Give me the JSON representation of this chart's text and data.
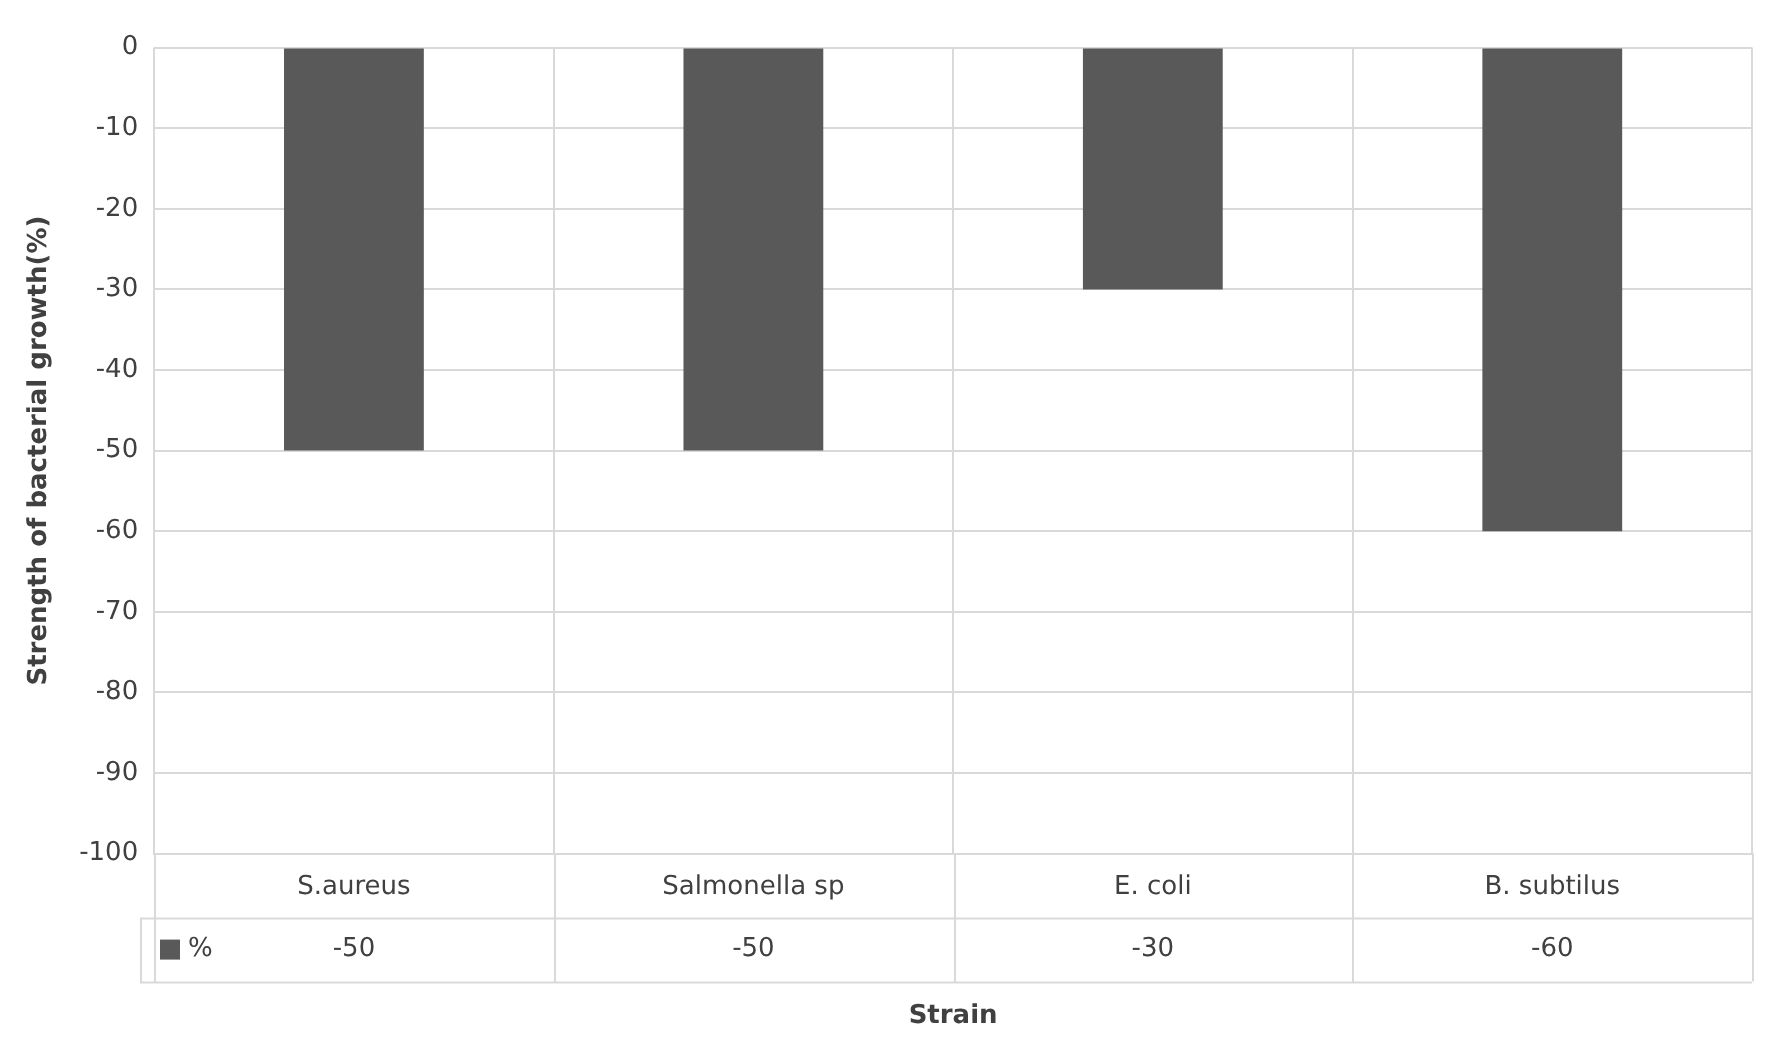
{
  "chart_data": {
    "type": "bar",
    "xlabel": "Strain",
    "ylabel": "Strength of bacterial growth(%)",
    "categories": [
      "S.aureus",
      "Salmonella sp",
      "E. coli",
      "B. subtilus"
    ],
    "series": [
      {
        "name": "%",
        "color": "#595959",
        "values": [
          -50,
          -50,
          -30,
          -60
        ]
      }
    ],
    "ylim": [
      -100,
      0
    ],
    "yticks": [
      0,
      -10,
      -20,
      -30,
      -40,
      -50,
      -60,
      -70,
      -80,
      -90,
      -100
    ],
    "grid": true,
    "data_labels": true
  }
}
